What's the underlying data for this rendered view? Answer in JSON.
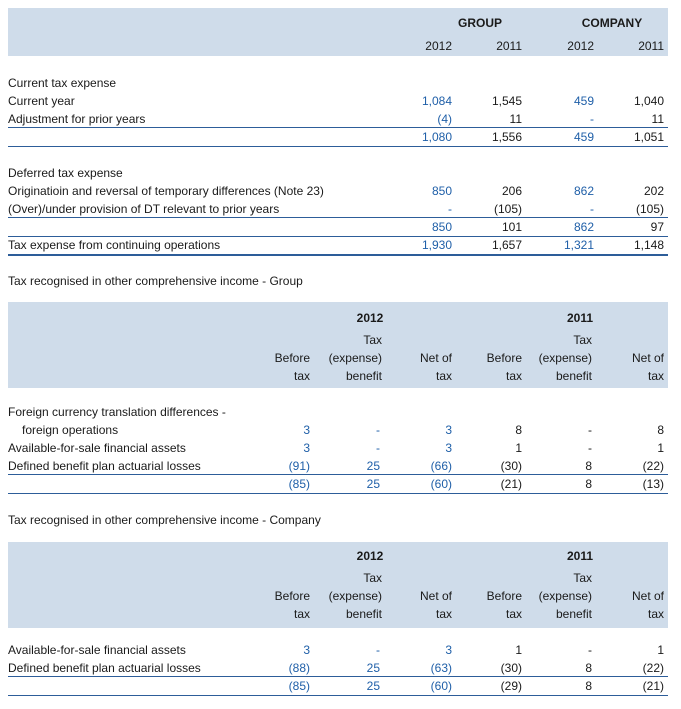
{
  "t1": {
    "groups": [
      "GROUP",
      "COMPANY"
    ],
    "years": [
      "2012",
      "2011",
      "2012",
      "2011"
    ],
    "sections": [
      {
        "title": "Current tax expense",
        "rows": [
          {
            "label": "Current year",
            "v": [
              "1,084",
              "1,545",
              "459",
              "1,040"
            ]
          },
          {
            "label": "Adjustment for prior years",
            "v": [
              "(4)",
              "11",
              "-",
              "11"
            ]
          }
        ],
        "total": [
          "1,080",
          "1,556",
          "459",
          "1,051"
        ]
      },
      {
        "title": "Deferred tax expense",
        "rows": [
          {
            "label": "Originatioin and reversal of temporary differences (Note 23)",
            "v": [
              "850",
              "206",
              "862",
              "202"
            ]
          },
          {
            "label": "(Over)/under provision of DT relevant to prior years",
            "v": [
              "-",
              "(105)",
              "-",
              "(105)"
            ]
          }
        ],
        "total": [
          "850",
          "101",
          "862",
          "97"
        ]
      }
    ],
    "grand": {
      "label": "Tax expense from continuing operations",
      "v": [
        "1,930",
        "1,657",
        "1,321",
        "1,148"
      ]
    }
  },
  "t2": {
    "title": "Tax recognised in other comprehensive income - Group",
    "years": [
      "2012",
      "2011"
    ],
    "cols": [
      {
        "l1": "",
        "l2": "Before",
        "l3": "tax"
      },
      {
        "l1": "Tax",
        "l2": "(expense)",
        "l3": "benefit"
      },
      {
        "l1": "",
        "l2": "Net of",
        "l3": "tax"
      },
      {
        "l1": "",
        "l2": "Before",
        "l3": "tax"
      },
      {
        "l1": "Tax",
        "l2": "(expense)",
        "l3": "benefit"
      },
      {
        "l1": "",
        "l2": "Net of",
        "l3": "tax"
      }
    ],
    "rows": [
      {
        "label": "Foreign currency translation differences -",
        "v": [
          "",
          "",
          "",
          "",
          "",
          ""
        ]
      },
      {
        "label": "foreign operations",
        "indent": true,
        "v": [
          "3",
          "-",
          "3",
          "8",
          "-",
          "8"
        ]
      },
      {
        "label": "Available-for-sale financial assets",
        "v": [
          "3",
          "-",
          "3",
          "1",
          "-",
          "1"
        ]
      },
      {
        "label": "Defined benefit plan actuarial losses",
        "v": [
          "(91)",
          "25",
          "(66)",
          "(30)",
          "8",
          "(22)"
        ]
      }
    ],
    "total": [
      "(85)",
      "25",
      "(60)",
      "(21)",
      "8",
      "(13)"
    ]
  },
  "t3": {
    "title": "Tax recognised in other comprehensive income - Company",
    "years": [
      "2012",
      "2011"
    ],
    "cols": [
      {
        "l1": "",
        "l2": "Before",
        "l3": "tax"
      },
      {
        "l1": "Tax",
        "l2": "(expense)",
        "l3": "benefit"
      },
      {
        "l1": "",
        "l2": "Net of",
        "l3": "tax"
      },
      {
        "l1": "",
        "l2": "Before",
        "l3": "tax"
      },
      {
        "l1": "Tax",
        "l2": "(expense)",
        "l3": "benefit"
      },
      {
        "l1": "",
        "l2": "Net of",
        "l3": "tax"
      }
    ],
    "rows": [
      {
        "label": "Available-for-sale financial assets",
        "v": [
          "3",
          "-",
          "3",
          "1",
          "-",
          "1"
        ]
      },
      {
        "label": "Defined benefit plan actuarial losses",
        "v": [
          "(88)",
          "25",
          "(63)",
          "(30)",
          "8",
          "(22)"
        ]
      }
    ],
    "total": [
      "(85)",
      "25",
      "(60)",
      "(29)",
      "8",
      "(21)"
    ]
  },
  "colors": {
    "blue_values": "#1f5fa8",
    "band": "#cfdcea",
    "rule": "#2d5d99"
  }
}
